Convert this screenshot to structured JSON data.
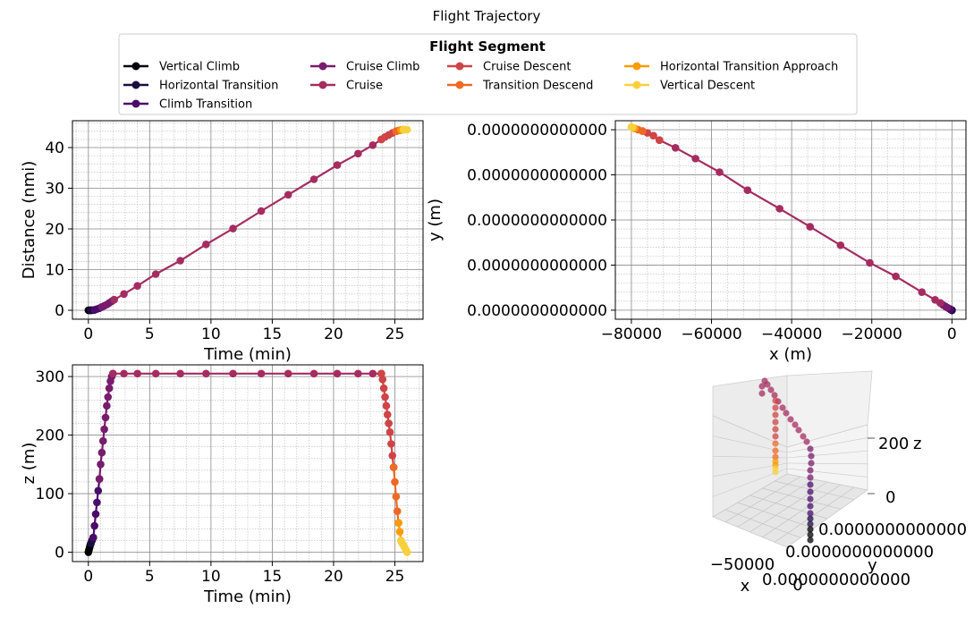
{
  "figure": {
    "title": "Flight Trajectory"
  },
  "legend": {
    "title": "Flight Segment",
    "entries": [
      {
        "label": "Vertical Climb",
        "color": "#000004"
      },
      {
        "label": "Horizontal Transition",
        "color": "#1b0c41"
      },
      {
        "label": "Climb Transition",
        "color": "#4a0c6b"
      },
      {
        "label": "Cruise Climb",
        "color": "#781c6d"
      },
      {
        "label": "Cruise",
        "color": "#a52c60"
      },
      {
        "label": "Cruise Descent",
        "color": "#cf4446"
      },
      {
        "label": "Transition Descend",
        "color": "#ed6925"
      },
      {
        "label": "Horizontal Transition Approach",
        "color": "#fb9b06"
      },
      {
        "label": "Vertical Descent",
        "color": "#f7d13d"
      }
    ]
  },
  "chart_data": [
    {
      "type": "line",
      "panel": "distance-vs-time",
      "xlabel": "Time (min)",
      "ylabel": "Distance (nmi)",
      "xlim": [
        -1.3,
        27.3
      ],
      "ylim": [
        -2.2,
        46.6
      ],
      "xticks": [
        "0",
        "5",
        "10",
        "15",
        "20",
        "25"
      ],
      "yticks": [
        "0",
        "10",
        "20",
        "30",
        "40"
      ],
      "grid": true,
      "series": [
        {
          "name": "Vertical Climb",
          "x": [
            0,
            0.05,
            0.1,
            0.15,
            0.2
          ],
          "y": [
            0,
            0,
            0,
            0,
            0
          ]
        },
        {
          "name": "Horizontal Transition",
          "x": [
            0.2,
            0.3,
            0.4,
            0.5
          ],
          "y": [
            0,
            0.02,
            0.05,
            0.1
          ]
        },
        {
          "name": "Climb Transition",
          "x": [
            0.5,
            0.7,
            0.9,
            1.1
          ],
          "y": [
            0.1,
            0.3,
            0.5,
            0.8
          ]
        },
        {
          "name": "Cruise Climb",
          "x": [
            1.1,
            1.3,
            1.5,
            1.7,
            1.9,
            2.1
          ],
          "y": [
            0.8,
            1.1,
            1.4,
            1.8,
            2.2,
            2.6
          ]
        },
        {
          "name": "Cruise",
          "x": [
            2.1,
            2.9,
            4.0,
            5.5,
            7.5,
            9.6,
            11.8,
            14.1,
            16.3,
            18.4,
            20.3,
            22.0,
            23.2,
            23.9
          ],
          "y": [
            2.6,
            4.0,
            6.0,
            8.9,
            12.2,
            16.2,
            20.1,
            24.4,
            28.4,
            32.2,
            35.7,
            38.5,
            40.6,
            42.0
          ]
        },
        {
          "name": "Cruise Descent",
          "x": [
            23.9,
            24.2,
            24.5,
            24.8,
            25.1
          ],
          "y": [
            42.0,
            42.6,
            43.1,
            43.6,
            44.0
          ]
        },
        {
          "name": "Transition Descend",
          "x": [
            25.1,
            25.3,
            25.5
          ],
          "y": [
            44.0,
            44.2,
            44.3
          ]
        },
        {
          "name": "Horizontal Transition Approach",
          "x": [
            25.5,
            25.6,
            25.7
          ],
          "y": [
            44.3,
            44.4,
            44.4
          ]
        },
        {
          "name": "Vertical Descent",
          "x": [
            25.7,
            25.8,
            25.9,
            26.0
          ],
          "y": [
            44.4,
            44.4,
            44.4,
            44.4
          ]
        }
      ]
    },
    {
      "type": "line",
      "panel": "y-vs-x",
      "xlabel": "x (m)",
      "ylabel": "y (m)",
      "xlim": [
        -84000,
        3500
      ],
      "ylim": [
        -0.2,
        4.2
      ],
      "xticks": [
        "−80000",
        "−60000",
        "−40000",
        "−20000",
        "0"
      ],
      "yticks": [
        "0.0000000000000",
        "0.0000000000000",
        "0.0000000000000",
        "0.0000000000000",
        "0.0000000000000"
      ],
      "grid": true,
      "series": [
        {
          "name": "Vertical Climb",
          "x": [
            0,
            0,
            0
          ],
          "y": [
            0,
            0,
            0
          ]
        },
        {
          "name": "Horizontal Transition",
          "x": [
            0,
            -200,
            -400
          ],
          "y": [
            0,
            0.01,
            0.02
          ]
        },
        {
          "name": "Climb Transition",
          "x": [
            -400,
            -800,
            -1200
          ],
          "y": [
            0.02,
            0.04,
            0.06
          ]
        },
        {
          "name": "Cruise Climb",
          "x": [
            -1200,
            -1700,
            -2300,
            -2900
          ],
          "y": [
            0.06,
            0.09,
            0.12,
            0.16
          ]
        },
        {
          "name": "Cruise",
          "x": [
            -2900,
            -4200,
            -7500,
            -14000,
            -20500,
            -27800,
            -35400,
            -43000,
            -51000,
            -58000,
            -64000,
            -69000,
            -73000
          ],
          "y": [
            0.16,
            0.23,
            0.4,
            0.75,
            1.05,
            1.44,
            1.85,
            2.25,
            2.66,
            3.06,
            3.36,
            3.6,
            3.77
          ]
        },
        {
          "name": "Cruise Descent",
          "x": [
            -73000,
            -74500,
            -76000,
            -77200
          ],
          "y": [
            3.77,
            3.87,
            3.93,
            3.97
          ]
        },
        {
          "name": "Transition Descend",
          "x": [
            -77200,
            -78300,
            -79200
          ],
          "y": [
            3.97,
            4.0,
            4.03
          ]
        },
        {
          "name": "Horizontal Transition Approach",
          "x": [
            -79200,
            -79700
          ],
          "y": [
            4.03,
            4.05
          ]
        },
        {
          "name": "Vertical Descent",
          "x": [
            -79700,
            -80000
          ],
          "y": [
            4.05,
            4.06
          ]
        }
      ]
    },
    {
      "type": "line",
      "panel": "z-vs-time",
      "xlabel": "Time (min)",
      "ylabel": "z (m)",
      "xlim": [
        -1.3,
        27.3
      ],
      "ylim": [
        -16,
        320
      ],
      "xticks": [
        "0",
        "5",
        "10",
        "15",
        "20",
        "25"
      ],
      "yticks": [
        "0",
        "100",
        "200",
        "300"
      ],
      "grid": true,
      "series": [
        {
          "name": "Vertical Climb",
          "x": [
            0,
            0.05,
            0.1,
            0.15,
            0.2
          ],
          "y": [
            0,
            4,
            8,
            12,
            15
          ]
        },
        {
          "name": "Horizontal Transition",
          "x": [
            0.2,
            0.3,
            0.4
          ],
          "y": [
            15,
            20,
            25
          ]
        },
        {
          "name": "Climb Transition",
          "x": [
            0.4,
            0.5,
            0.6,
            0.7,
            0.8,
            0.9
          ],
          "y": [
            25,
            45,
            65,
            85,
            105,
            125
          ]
        },
        {
          "name": "Cruise Climb",
          "x": [
            0.9,
            1.0,
            1.1,
            1.2,
            1.3,
            1.4,
            1.5,
            1.6,
            1.7,
            1.8,
            1.9,
            2.0
          ],
          "y": [
            125,
            150,
            170,
            190,
            210,
            230,
            250,
            265,
            280,
            292,
            300,
            305
          ]
        },
        {
          "name": "Cruise",
          "x": [
            2.0,
            2.9,
            4.0,
            5.5,
            7.5,
            9.6,
            11.8,
            14.1,
            16.3,
            18.4,
            20.3,
            22.0,
            23.2,
            23.9
          ],
          "y": [
            305,
            305,
            305,
            305,
            305,
            305,
            305,
            305,
            305,
            305,
            305,
            305,
            305,
            305
          ]
        },
        {
          "name": "Cruise Descent",
          "x": [
            23.9,
            24.0,
            24.1,
            24.2,
            24.3,
            24.4,
            24.5,
            24.6,
            24.7,
            24.8,
            24.9
          ],
          "y": [
            305,
            295,
            280,
            265,
            250,
            235,
            220,
            205,
            185,
            165,
            145
          ]
        },
        {
          "name": "Transition Descend",
          "x": [
            24.9,
            25.0,
            25.1,
            25.2,
            25.3
          ],
          "y": [
            145,
            120,
            95,
            70,
            50
          ]
        },
        {
          "name": "Horizontal Transition Approach",
          "x": [
            25.3,
            25.4,
            25.5
          ],
          "y": [
            50,
            35,
            20
          ]
        },
        {
          "name": "Vertical Descent",
          "x": [
            25.5,
            25.6,
            25.7,
            25.8,
            25.9,
            26.0
          ],
          "y": [
            20,
            15,
            12,
            8,
            4,
            0
          ]
        }
      ]
    },
    {
      "type": "scatter",
      "panel": "3d-trajectory",
      "xlabel": "x",
      "ylabel": "y",
      "zlabel": "z",
      "xticks": [
        "−50000",
        "0"
      ],
      "yticks": [
        "0.0000000000000",
        "0.0000000000000",
        "0.0000000000000"
      ],
      "zticks": [
        "0",
        "200"
      ]
    }
  ]
}
